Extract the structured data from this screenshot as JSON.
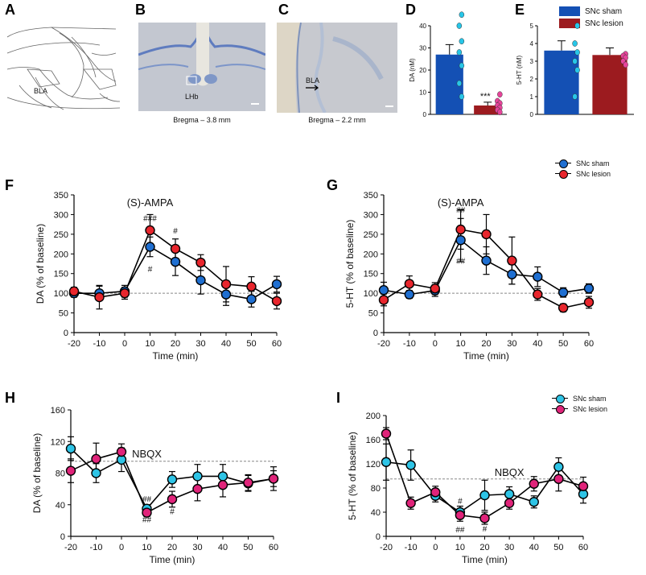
{
  "colors": {
    "sham_blue": "#1f6fd1",
    "lesion_red": "#e8262d",
    "sham_cyan": "#2ec4e6",
    "lesion_magenta": "#e0247a",
    "bar_blue": "#1450b4",
    "bar_red": "#9c1b1f",
    "point_cyan": "#27c6e8",
    "point_pink": "#e6449a",
    "dash": "#888888",
    "tissue_blue": "#a8b9d6",
    "tissue_bg": "#c9cbd1",
    "tissue_beige": "#d8d2c4"
  },
  "panels": {
    "A": {
      "letter": "A",
      "region_label": "BLA"
    },
    "B": {
      "letter": "B",
      "region_label": "LHb",
      "caption": "Bregma – 3.8 mm"
    },
    "C": {
      "letter": "C",
      "region_label": "BLA",
      "caption": "Bregma – 2.2 mm"
    },
    "D": {
      "letter": "D"
    },
    "E": {
      "letter": "E"
    },
    "F": {
      "letter": "F"
    },
    "G": {
      "letter": "G"
    },
    "H": {
      "letter": "H"
    },
    "I": {
      "letter": "I"
    }
  },
  "legends": {
    "top": {
      "sham": "SNc sham",
      "lesion": "SNc lesion"
    },
    "fg": {
      "sham": "SNc sham",
      "lesion": "SNc lesion"
    },
    "hi": {
      "sham": "SNc sham",
      "lesion": "SNc lesion"
    }
  },
  "chart_data": [
    {
      "id": "D",
      "type": "bar",
      "title": "",
      "xlabel": "",
      "ylabel": "DA (nM)",
      "ylim": [
        0,
        40
      ],
      "yticks": [
        0,
        10,
        20,
        30,
        40
      ],
      "categories": [
        "SNc sham",
        "SNc lesion"
      ],
      "values": [
        27,
        4
      ],
      "errors": [
        4.5,
        1.5
      ],
      "points": [
        [
          45,
          40,
          33,
          28,
          22,
          14,
          8
        ],
        [
          9,
          6,
          5,
          4,
          3,
          2,
          1
        ]
      ],
      "annotations": [
        "***"
      ]
    },
    {
      "id": "E",
      "type": "bar",
      "title": "",
      "xlabel": "",
      "ylabel": "5-HT (nM)",
      "ylim": [
        0,
        5
      ],
      "yticks": [
        0,
        1,
        2,
        3,
        4,
        5
      ],
      "categories": [
        "SNc sham",
        "SNc lesion"
      ],
      "values": [
        3.6,
        3.35
      ],
      "errors": [
        0.55,
        0.4
      ],
      "points": [
        [
          5.0,
          4.0,
          3.5,
          3.0,
          2.5,
          1.0
        ],
        [
          3.4,
          3.3,
          3.2,
          3.0,
          2.8
        ]
      ]
    },
    {
      "id": "F",
      "type": "line",
      "xlabel": "Time (min)",
      "ylabel": "DA (% of baseline)",
      "x": [
        -20,
        -10,
        0,
        10,
        20,
        30,
        40,
        50,
        60
      ],
      "xlim": [
        -20,
        60
      ],
      "ylim": [
        0,
        350
      ],
      "yticks": [
        0,
        50,
        100,
        150,
        200,
        250,
        300,
        350
      ],
      "baseline": 100,
      "series": [
        {
          "name": "SNc sham",
          "values": [
            100,
            100,
            105,
            218,
            180,
            133,
            97,
            85,
            123
          ],
          "errors": [
            10,
            18,
            15,
            25,
            35,
            35,
            28,
            20,
            20
          ]
        },
        {
          "name": "SNc lesion",
          "values": [
            105,
            90,
            100,
            260,
            213,
            178,
            123,
            117,
            80
          ],
          "errors": [
            10,
            30,
            15,
            40,
            25,
            20,
            45,
            25,
            20
          ]
        }
      ],
      "annotations": [
        "(S)-AMPA",
        "###",
        "#",
        "#"
      ]
    },
    {
      "id": "G",
      "type": "line",
      "xlabel": "Time (min)",
      "ylabel": "5-HT (% of baseline)",
      "x": [
        -20,
        -10,
        0,
        10,
        20,
        30,
        40,
        50,
        60
      ],
      "xlim": [
        -20,
        60
      ],
      "ylim": [
        0,
        350
      ],
      "yticks": [
        0,
        50,
        100,
        150,
        200,
        250,
        300,
        350
      ],
      "baseline": 100,
      "series": [
        {
          "name": "SNc sham",
          "values": [
            108,
            97,
            107,
            235,
            183,
            148,
            142,
            102,
            112
          ],
          "errors": [
            20,
            10,
            15,
            55,
            35,
            25,
            25,
            12,
            12
          ]
        },
        {
          "name": "SNc lesion",
          "values": [
            83,
            124,
            112,
            262,
            250,
            183,
            97,
            63,
            77
          ],
          "errors": [
            15,
            20,
            15,
            50,
            50,
            60,
            15,
            10,
            15
          ]
        }
      ],
      "annotations": [
        "(S)-AMPA",
        "##",
        "##"
      ]
    },
    {
      "id": "H",
      "type": "line",
      "xlabel": "Time (min)",
      "ylabel": "DA (% of baseline)",
      "x": [
        -20,
        -10,
        0,
        10,
        20,
        30,
        40,
        50,
        60
      ],
      "xlim": [
        -20,
        60
      ],
      "ylim": [
        0,
        160
      ],
      "yticks": [
        0,
        40,
        80,
        120,
        160
      ],
      "baseline": 95,
      "series": [
        {
          "name": "SNc sham",
          "values": [
            111,
            80,
            97,
            35,
            72,
            76,
            76,
            67,
            73
          ],
          "errors": [
            15,
            12,
            15,
            5,
            10,
            15,
            15,
            10,
            15
          ]
        },
        {
          "name": "SNc lesion",
          "values": [
            83,
            98,
            107,
            30,
            47,
            60,
            65,
            68,
            73
          ],
          "errors": [
            15,
            20,
            10,
            5,
            10,
            15,
            15,
            10,
            10
          ]
        }
      ],
      "annotations": [
        "NBQX",
        "##",
        "##",
        "#"
      ]
    },
    {
      "id": "I",
      "type": "line",
      "xlabel": "Time (min)",
      "ylabel": "5-HT (% of baseline)",
      "x": [
        -20,
        -10,
        0,
        10,
        20,
        30,
        40,
        50,
        60
      ],
      "xlim": [
        -20,
        60
      ],
      "ylim": [
        0,
        200
      ],
      "yticks": [
        0,
        40,
        80,
        120,
        160,
        200
      ],
      "baseline": 95,
      "series": [
        {
          "name": "SNc sham",
          "values": [
            123,
            118,
            67,
            40,
            68,
            70,
            57,
            115,
            70
          ],
          "errors": [
            30,
            25,
            10,
            10,
            25,
            12,
            10,
            15,
            15
          ]
        },
        {
          "name": "SNc lesion",
          "values": [
            170,
            55,
            73,
            35,
            30,
            55,
            87,
            95,
            83
          ],
          "errors": [
            10,
            10,
            10,
            10,
            10,
            10,
            12,
            20,
            15
          ]
        }
      ],
      "annotations": [
        "NBQX",
        "#",
        "##",
        "#"
      ]
    }
  ]
}
